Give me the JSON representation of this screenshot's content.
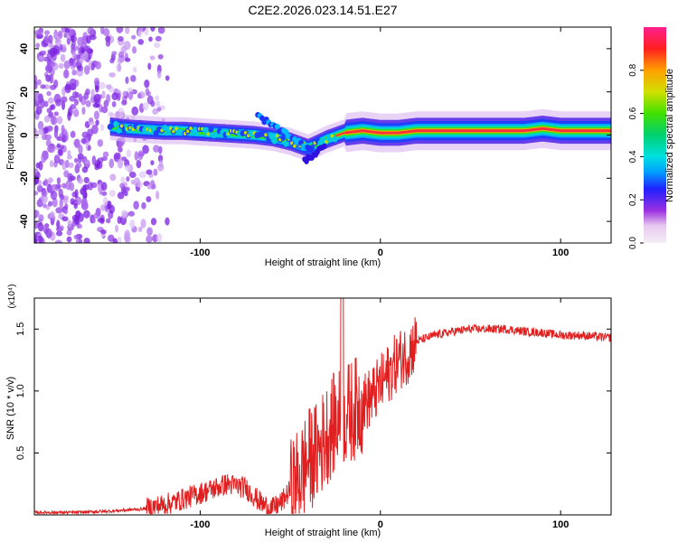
{
  "title": "C2E2.2026.023.14.51.E27",
  "chart_data": [
    {
      "type": "heatmap",
      "xlabel": "Height of straight line (km)",
      "ylabel": "Frequency (Hz)",
      "xlim": [
        -192,
        128
      ],
      "ylim": [
        -50,
        50
      ],
      "xticks": [
        {
          "value": -100,
          "label": "-100"
        },
        {
          "value": 0,
          "label": "0"
        },
        {
          "value": 100,
          "label": "100"
        }
      ],
      "yticks": [
        {
          "value": -40,
          "label": "-40"
        },
        {
          "value": -20,
          "label": "-20"
        },
        {
          "value": 0,
          "label": "0"
        },
        {
          "value": 20,
          "label": "20"
        },
        {
          "value": 40,
          "label": "40"
        }
      ],
      "colorbar": {
        "label": "Normalized spectral amplitude",
        "range": [
          0,
          1
        ],
        "ticks": [
          {
            "value": 0.0,
            "label": "0.0"
          },
          {
            "value": 0.2,
            "label": "0.2"
          },
          {
            "value": 0.4,
            "label": "0.4"
          },
          {
            "value": 0.6,
            "label": "0.6"
          },
          {
            "value": 0.8,
            "label": "0.8"
          }
        ]
      },
      "ridge": {
        "description_x_km": [
          -150,
          -140,
          -130,
          -120,
          -110,
          -100,
          -90,
          -80,
          -70,
          -60,
          -50,
          -40,
          -30,
          -20,
          -10,
          0,
          10,
          20,
          40,
          60,
          80,
          90,
          100,
          110,
          128
        ],
        "frequency_hz": [
          4,
          3,
          2.5,
          2,
          2,
          1.5,
          1,
          0.5,
          0,
          -1,
          -3,
          -6,
          -2,
          1,
          2,
          1,
          1,
          2,
          2,
          2,
          2,
          3,
          2,
          2,
          2
        ]
      }
    },
    {
      "type": "line",
      "xlabel": "Height of straight line (km)",
      "ylabel": "SNR (10 * v/v)",
      "scale_label": "(x10⁴)",
      "xlim": [
        -192,
        128
      ],
      "ylim": [
        0,
        1.75
      ],
      "xticks": [
        {
          "value": -100,
          "label": "-100"
        },
        {
          "value": 0,
          "label": "0"
        },
        {
          "value": 100,
          "label": "100"
        }
      ],
      "yticks": [
        {
          "value": 0.5,
          "label": "0.5"
        },
        {
          "value": 1.0,
          "label": "1.0"
        },
        {
          "value": 1.5,
          "label": "1.5"
        }
      ],
      "series": [
        {
          "name": "SNR",
          "color": "#e02020",
          "x": [
            -192,
            -170,
            -150,
            -130,
            -115,
            -105,
            -95,
            -85,
            -75,
            -70,
            -65,
            -60,
            -55,
            -50,
            -45,
            -40,
            -35,
            -30,
            -25,
            -20,
            -15,
            -10,
            -5,
            0,
            5,
            10,
            15,
            20,
            30,
            40,
            50,
            60,
            70,
            80,
            90,
            100,
            110,
            120,
            128
          ],
          "y": [
            0.02,
            0.02,
            0.03,
            0.05,
            0.1,
            0.15,
            0.2,
            0.25,
            0.22,
            0.15,
            0.08,
            0.05,
            0.1,
            0.2,
            0.3,
            0.45,
            0.5,
            0.65,
            0.75,
            0.8,
            0.85,
            0.9,
            0.95,
            1.05,
            1.15,
            1.25,
            1.3,
            1.4,
            1.45,
            1.48,
            1.5,
            1.5,
            1.5,
            1.48,
            1.47,
            1.45,
            1.45,
            1.44,
            1.43
          ]
        }
      ]
    }
  ]
}
